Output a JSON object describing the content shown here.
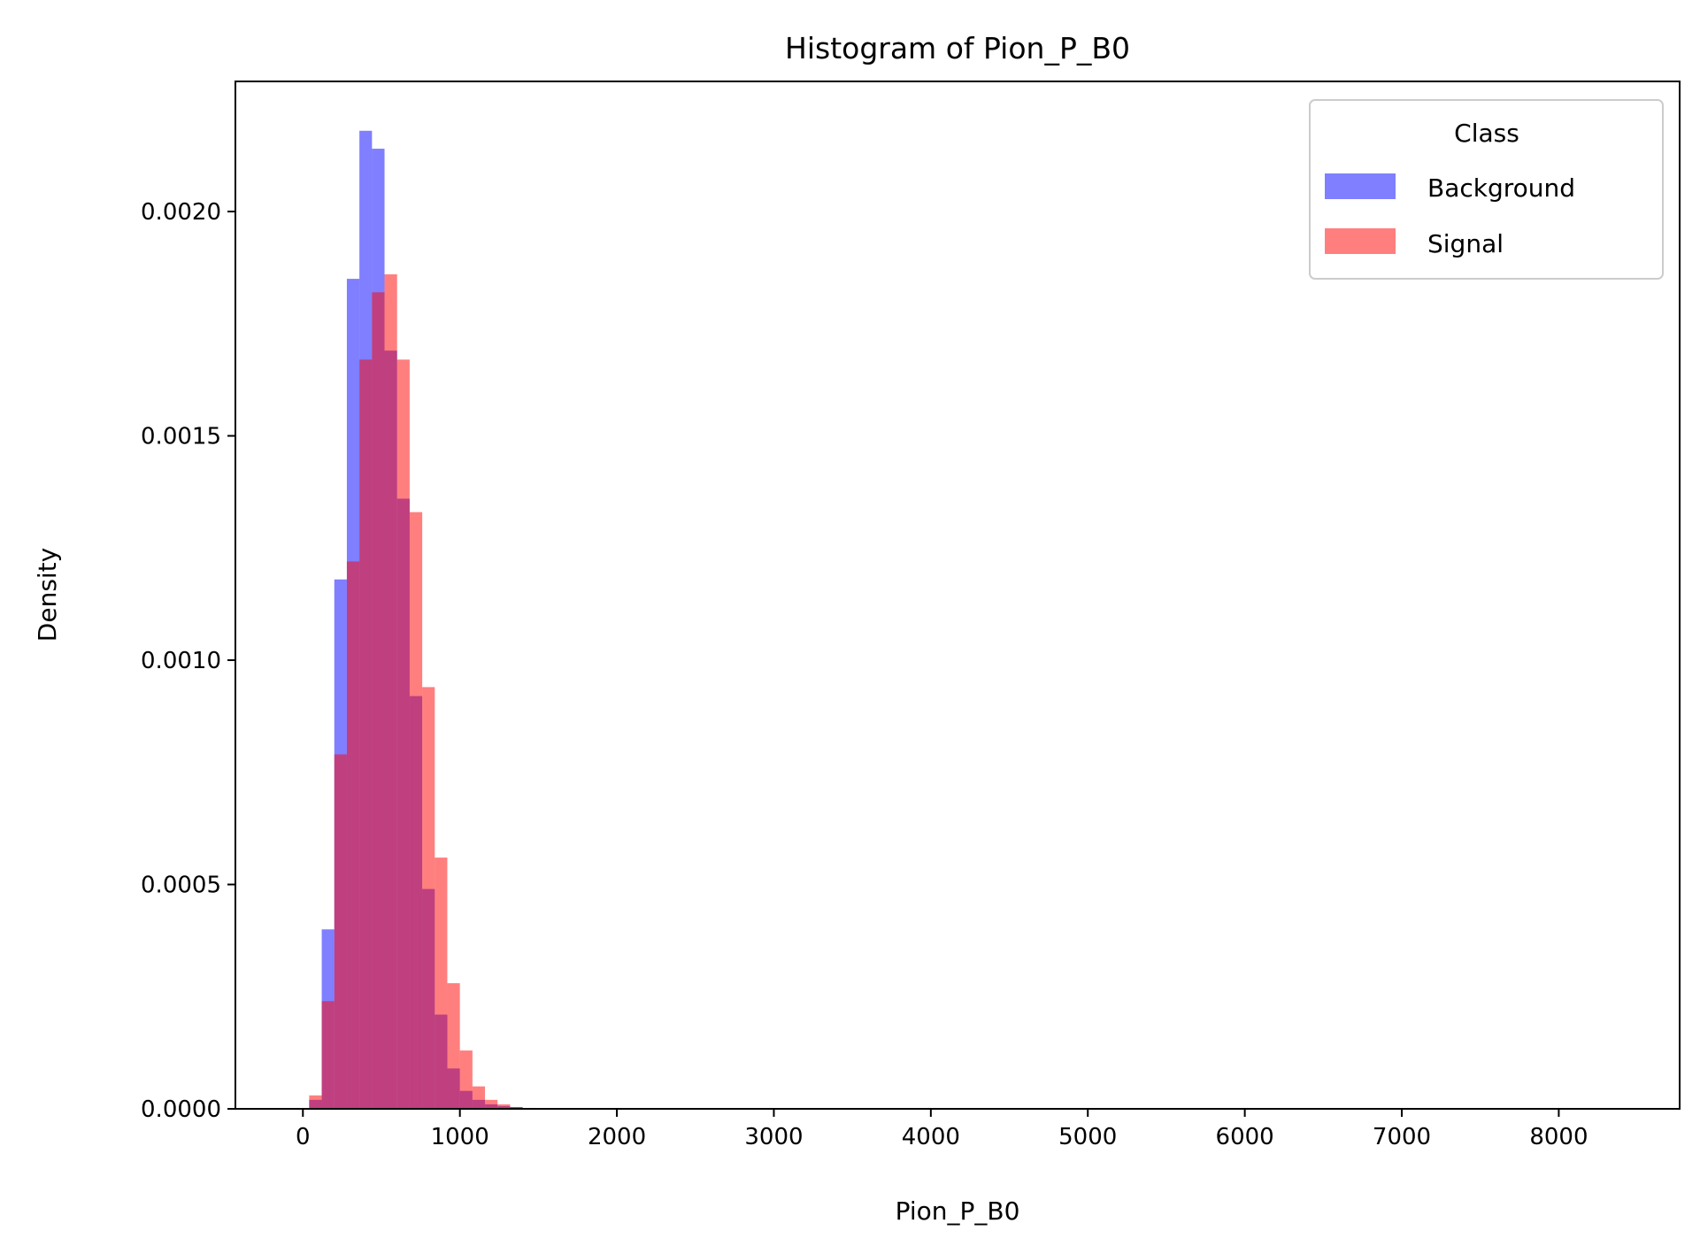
{
  "chart_data": {
    "type": "bar",
    "title": "Histogram of Pion_P_B0",
    "xlabel": "Pion_P_B0",
    "ylabel": "Density",
    "xlim": [
      -430,
      8770
    ],
    "ylim": [
      0,
      0.00229
    ],
    "xticks": [
      0,
      1000,
      2000,
      3000,
      4000,
      5000,
      6000,
      7000,
      8000
    ],
    "xtick_labels": [
      "0",
      "1000",
      "2000",
      "3000",
      "4000",
      "5000",
      "6000",
      "7000",
      "8000"
    ],
    "yticks": [
      0,
      0.0005,
      0.001,
      0.0015,
      0.002
    ],
    "ytick_labels": [
      "0.0000",
      "0.0005",
      "0.0010",
      "0.0015",
      "0.0020"
    ],
    "grid": false,
    "legend": {
      "title": "Class",
      "placement": "top-right"
    },
    "bin_width": 80,
    "series": [
      {
        "name": "Background",
        "color": "#0000ff",
        "opacity": 0.5,
        "bin_starts": [
          40,
          120,
          200,
          280,
          360,
          440,
          520,
          600,
          680,
          760,
          840,
          920,
          1000,
          1080,
          1160,
          1240,
          1320,
          1400,
          1480
        ],
        "values": [
          2e-05,
          0.0004,
          0.00118,
          0.00185,
          0.00218,
          0.00214,
          0.00169,
          0.00136,
          0.00092,
          0.00049,
          0.00021,
          9e-05,
          4e-05,
          2e-05,
          1e-05,
          6e-06,
          4e-06,
          2e-06,
          1e-06
        ]
      },
      {
        "name": "Signal",
        "color": "#ff0000",
        "opacity": 0.5,
        "bin_starts": [
          40,
          120,
          200,
          280,
          360,
          440,
          520,
          600,
          680,
          760,
          840,
          920,
          1000,
          1080,
          1160,
          1240,
          1320,
          1400
        ],
        "values": [
          3e-05,
          0.00024,
          0.00079,
          0.00122,
          0.00167,
          0.00182,
          0.00186,
          0.00167,
          0.00133,
          0.00094,
          0.00056,
          0.00028,
          0.00013,
          5e-05,
          2e-05,
          1e-05,
          4e-06,
          2e-06
        ]
      }
    ]
  }
}
